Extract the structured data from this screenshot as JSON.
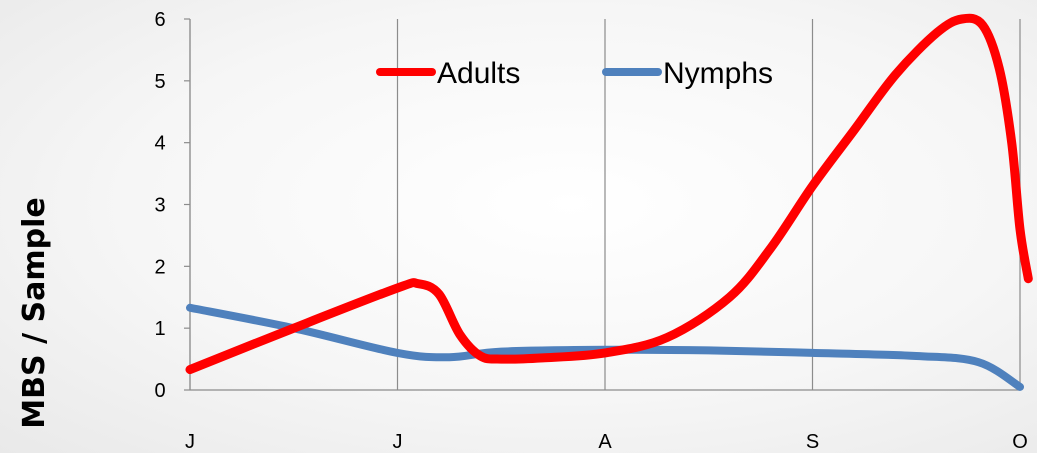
{
  "chart_data": {
    "type": "line",
    "title": "",
    "xlabel": "",
    "ylabel": "MBS / Sample",
    "ylim": [
      0,
      6
    ],
    "yticks": [
      "0",
      "1",
      "2",
      "3",
      "4",
      "5",
      "6"
    ],
    "categories": [
      "J",
      "J",
      "A",
      "S",
      "O"
    ],
    "x_range": [
      0,
      4
    ],
    "grid": {
      "vertical": true,
      "horizontal": false
    },
    "legend_position": "top-center",
    "smooth": true,
    "series": [
      {
        "name": "Adults",
        "color": "#ff0000",
        "points": [
          [
            0.0,
            0.33
          ],
          [
            0.5,
            1.0
          ],
          [
            1.0,
            1.65
          ],
          [
            1.1,
            1.72
          ],
          [
            1.2,
            1.55
          ],
          [
            1.3,
            0.9
          ],
          [
            1.4,
            0.55
          ],
          [
            1.5,
            0.5
          ],
          [
            1.7,
            0.52
          ],
          [
            2.0,
            0.6
          ],
          [
            2.3,
            0.85
          ],
          [
            2.6,
            1.5
          ],
          [
            2.8,
            2.3
          ],
          [
            3.0,
            3.3
          ],
          [
            3.2,
            4.2
          ],
          [
            3.4,
            5.1
          ],
          [
            3.6,
            5.78
          ],
          [
            3.72,
            6.0
          ],
          [
            3.82,
            5.9
          ],
          [
            3.9,
            5.2
          ],
          [
            3.96,
            4.0
          ],
          [
            4.0,
            2.6
          ],
          [
            4.04,
            1.8
          ]
        ]
      },
      {
        "name": "Nymphs",
        "color": "#4f81bd",
        "points": [
          [
            0.0,
            1.33
          ],
          [
            0.5,
            1.0
          ],
          [
            1.0,
            0.6
          ],
          [
            1.25,
            0.53
          ],
          [
            1.5,
            0.62
          ],
          [
            2.0,
            0.65
          ],
          [
            2.5,
            0.64
          ],
          [
            3.0,
            0.6
          ],
          [
            3.5,
            0.55
          ],
          [
            3.8,
            0.45
          ],
          [
            4.0,
            0.05
          ]
        ]
      }
    ]
  }
}
